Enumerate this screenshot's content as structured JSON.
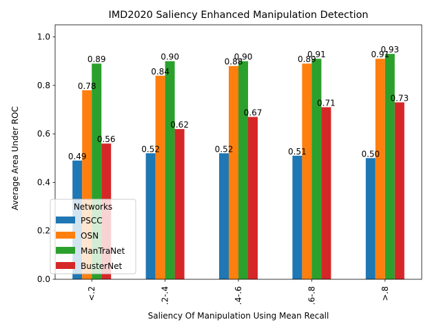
{
  "chart_data": {
    "type": "bar",
    "title": "IMD2020 Saliency Enhanced Manipulation Detection",
    "xlabel": "Saliency Of Manipulation Using Mean Recall",
    "ylabel": "Average Area Under ROC",
    "categories": [
      "<.2",
      ".2-.4",
      ".4-.6",
      ".6-.8",
      ">.8"
    ],
    "ylim": [
      0,
      1.05
    ],
    "yticks": [
      "0.0",
      "0.2",
      "0.4",
      "0.6",
      "0.8",
      "1.0"
    ],
    "grid": false,
    "legend": {
      "title": "Networks",
      "placement": "lower-left"
    },
    "series": [
      {
        "name": "PSCC",
        "color": "#1f77b4",
        "values": [
          0.49,
          0.52,
          0.52,
          0.51,
          0.5
        ],
        "labels": [
          "0.49",
          "0.52",
          "0.52",
          "0.51",
          "0.50"
        ]
      },
      {
        "name": "OSN",
        "color": "#ff7f0e",
        "values": [
          0.78,
          0.84,
          0.88,
          0.89,
          0.91
        ],
        "labels": [
          "0.78",
          "0.84",
          "0.88",
          "0.89",
          "0.91"
        ]
      },
      {
        "name": "ManTraNet",
        "color": "#2ca02c",
        "values": [
          0.89,
          0.9,
          0.9,
          0.91,
          0.93
        ],
        "labels": [
          "0.89",
          "0.90",
          "0.90",
          "0.91",
          "0.93"
        ]
      },
      {
        "name": "BusterNet",
        "color": "#d62728",
        "values": [
          0.56,
          0.62,
          0.67,
          0.71,
          0.73
        ],
        "labels": [
          "0.56",
          "0.62",
          "0.67",
          "0.71",
          "0.73"
        ]
      }
    ]
  }
}
